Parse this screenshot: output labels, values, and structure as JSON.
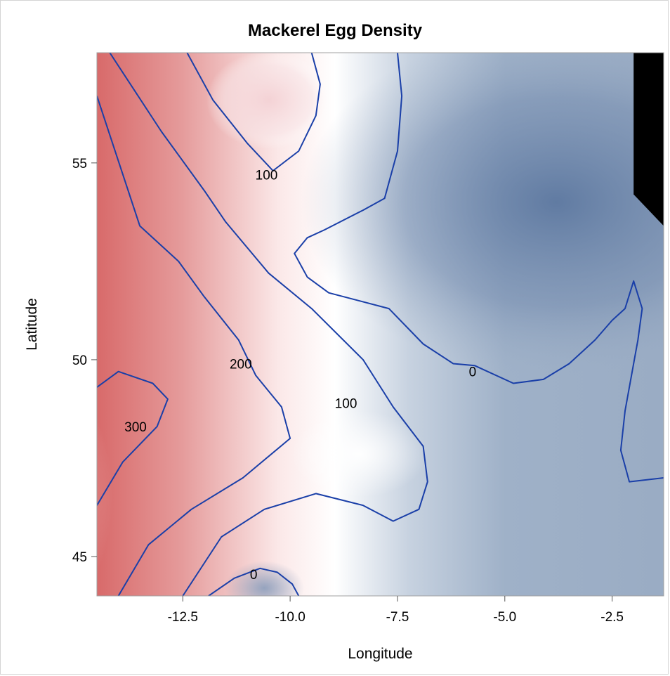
{
  "chart_data": {
    "type": "contour",
    "title": "Mackerel Egg Density",
    "xlabel": "Longitude",
    "ylabel": "Latitude",
    "xlim": [
      -14.5,
      -1.3
    ],
    "ylim": [
      44.0,
      57.8
    ],
    "x_ticks": [
      -12.5,
      -10.0,
      -7.5,
      -5.0,
      -2.5
    ],
    "x_tick_labels": [
      "-12.5",
      "-10.0",
      "-7.5",
      "-5.0",
      "-2.5"
    ],
    "y_ticks": [
      45,
      50,
      55
    ],
    "y_tick_labels": [
      "45",
      "50",
      "55"
    ],
    "colors": {
      "high": "#d05a5a",
      "mid": "#ffffff",
      "low": "#5f7aa0",
      "contour_line": "#1a3fa8",
      "missing": "#000000"
    },
    "contour_levels": [
      0,
      100,
      200,
      300
    ],
    "contour_labels": [
      {
        "text": "100",
        "lon": -10.55,
        "lat": 54.7
      },
      {
        "text": "200",
        "lon": -11.15,
        "lat": 49.9
      },
      {
        "text": "100",
        "lon": -8.7,
        "lat": 48.9
      },
      {
        "text": "0",
        "lon": -5.75,
        "lat": 49.7
      },
      {
        "text": "300",
        "lon": -13.6,
        "lat": 48.3
      },
      {
        "text": "0",
        "lon": -10.85,
        "lat": 44.55
      }
    ],
    "contours": [
      {
        "level": 100,
        "points": [
          [
            -12.4,
            57.8
          ],
          [
            -11.8,
            56.6
          ],
          [
            -11.0,
            55.5
          ],
          [
            -10.4,
            54.8
          ],
          [
            -9.8,
            55.3
          ],
          [
            -9.4,
            56.2
          ],
          [
            -9.3,
            57.0
          ],
          [
            -9.5,
            57.8
          ]
        ]
      },
      {
        "level": 100,
        "points": [
          [
            -14.2,
            57.8
          ],
          [
            -13.0,
            55.8
          ],
          [
            -12.0,
            54.3
          ],
          [
            -11.5,
            53.5
          ],
          [
            -10.5,
            52.2
          ],
          [
            -9.5,
            51.3
          ],
          [
            -8.3,
            50.0
          ],
          [
            -7.6,
            48.8
          ],
          [
            -6.9,
            47.8
          ],
          [
            -6.8,
            46.9
          ],
          [
            -7.0,
            46.2
          ],
          [
            -7.6,
            45.9
          ],
          [
            -8.3,
            46.3
          ],
          [
            -9.4,
            46.6
          ],
          [
            -10.6,
            46.2
          ],
          [
            -11.6,
            45.5
          ],
          [
            -12.5,
            44.0
          ]
        ]
      },
      {
        "level": 200,
        "points": [
          [
            -14.5,
            56.7
          ],
          [
            -13.5,
            53.4
          ],
          [
            -12.6,
            52.5
          ],
          [
            -12.0,
            51.6
          ],
          [
            -11.2,
            50.5
          ],
          [
            -10.8,
            49.6
          ],
          [
            -10.2,
            48.8
          ],
          [
            -10.0,
            48.0
          ],
          [
            -11.1,
            47.0
          ],
          [
            -12.3,
            46.2
          ],
          [
            -13.3,
            45.3
          ],
          [
            -14.0,
            44.0
          ]
        ]
      },
      {
        "level": 300,
        "points": [
          [
            -14.5,
            49.3
          ],
          [
            -14.0,
            49.7
          ],
          [
            -13.2,
            49.4
          ],
          [
            -12.85,
            49.0
          ],
          [
            -13.1,
            48.3
          ],
          [
            -13.9,
            47.4
          ],
          [
            -14.5,
            46.3
          ]
        ]
      },
      {
        "level": 0,
        "points": [
          [
            -7.5,
            57.8
          ],
          [
            -7.4,
            56.7
          ],
          [
            -7.5,
            55.3
          ],
          [
            -7.8,
            54.1
          ],
          [
            -8.3,
            53.8
          ],
          [
            -9.2,
            53.3
          ],
          [
            -9.6,
            53.1
          ],
          [
            -9.9,
            52.7
          ],
          [
            -9.6,
            52.1
          ],
          [
            -9.1,
            51.7
          ],
          [
            -7.7,
            51.3
          ],
          [
            -6.9,
            50.4
          ],
          [
            -6.2,
            49.9
          ],
          [
            -5.7,
            49.85
          ],
          [
            -4.8,
            49.4
          ],
          [
            -4.1,
            49.5
          ],
          [
            -3.5,
            49.9
          ],
          [
            -2.9,
            50.5
          ],
          [
            -2.5,
            51.0
          ],
          [
            -2.2,
            51.3
          ],
          [
            -2.0,
            52.0
          ],
          [
            -1.8,
            51.3
          ],
          [
            -1.9,
            50.5
          ],
          [
            -2.2,
            48.7
          ],
          [
            -2.3,
            47.7
          ],
          [
            -2.1,
            46.9
          ],
          [
            -1.3,
            47.0
          ]
        ]
      },
      {
        "level": 0,
        "points": [
          [
            -11.9,
            44.0
          ],
          [
            -11.3,
            44.45
          ],
          [
            -10.7,
            44.7
          ],
          [
            -10.3,
            44.6
          ],
          [
            -9.95,
            44.3
          ],
          [
            -9.8,
            44.0
          ]
        ]
      }
    ],
    "missing_region": [
      [
        -2.0,
        57.8
      ],
      [
        -1.3,
        57.8
      ],
      [
        -1.3,
        53.4
      ],
      [
        -2.0,
        54.2
      ]
    ]
  }
}
